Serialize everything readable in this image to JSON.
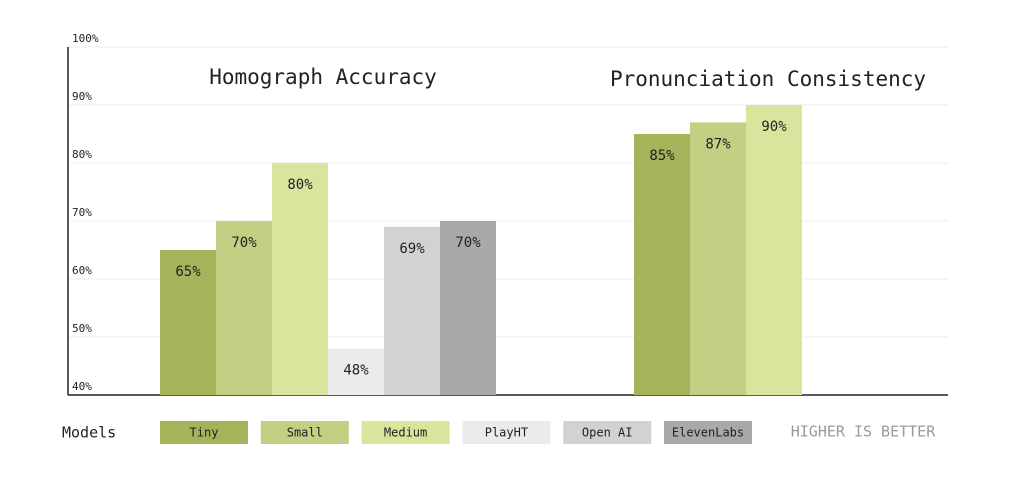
{
  "chart_data": {
    "type": "bar",
    "categories": [
      "Homograph Accuracy",
      "Pronunciation Consistency"
    ],
    "series": [
      {
        "name": "Tiny",
        "color": "#a3b45a",
        "values": [
          65,
          85
        ],
        "value_labels": [
          "65%",
          "85%"
        ]
      },
      {
        "name": "Small",
        "color": "#c2d084",
        "values": [
          70,
          87
        ],
        "value_labels": [
          "70%",
          "87%"
        ]
      },
      {
        "name": "Medium",
        "color": "#d7e59d",
        "values": [
          80,
          90
        ],
        "value_labels": [
          "80%",
          "90%"
        ]
      },
      {
        "name": "PlayHT",
        "color": "#ebebeb",
        "values": [
          48,
          null
        ],
        "value_labels": [
          "48%",
          null
        ]
      },
      {
        "name": "Open AI",
        "color": "#d2d2d2",
        "values": [
          69,
          null
        ],
        "value_labels": [
          "69%",
          null
        ]
      },
      {
        "name": "ElevenLabs",
        "color": "#a9a9a9",
        "values": [
          70,
          null
        ],
        "value_labels": [
          "70%",
          null
        ]
      }
    ],
    "legend_title": "Models",
    "note": "HIGHER IS BETTER",
    "ylim": [
      40,
      100
    ],
    "yticks": [
      {
        "value": 40,
        "label": "40%"
      },
      {
        "value": 50,
        "label": "50%"
      },
      {
        "value": 60,
        "label": "60%"
      },
      {
        "value": 70,
        "label": "70%"
      },
      {
        "value": 80,
        "label": "80%"
      },
      {
        "value": 90,
        "label": "90%"
      },
      {
        "value": 100,
        "label": "100%"
      }
    ],
    "grid": true
  }
}
